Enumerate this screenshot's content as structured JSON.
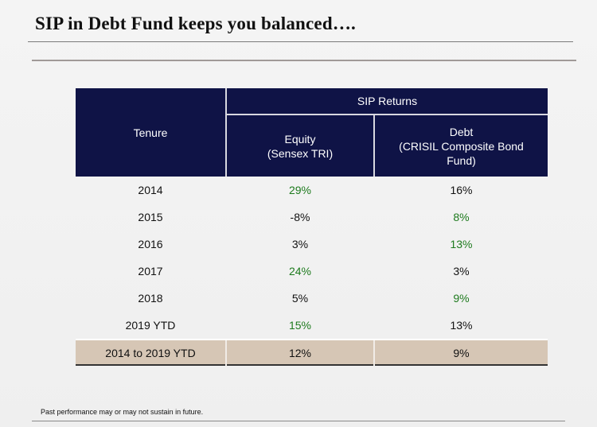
{
  "title": "SIP in Debt Fund keeps you balanced….",
  "table": {
    "header": {
      "tenure": "Tenure",
      "sip_returns": "SIP Returns",
      "equity_line1": "Equity",
      "equity_line2": "(Sensex TRI)",
      "debt_line1": "Debt",
      "debt_line2": "(CRISIL Composite Bond",
      "debt_line3": "Fund)"
    },
    "rows": [
      {
        "tenure": "2014",
        "equity": "29%",
        "debt": "16%"
      },
      {
        "tenure": "2015",
        "equity": "-8%",
        "debt": "8%"
      },
      {
        "tenure": "2016",
        "equity": "3%",
        "debt": "13%"
      },
      {
        "tenure": "2017",
        "equity": "24%",
        "debt": "3%"
      },
      {
        "tenure": "2018",
        "equity": "5%",
        "debt": "9%"
      },
      {
        "tenure": "2019 YTD",
        "equity": "15%",
        "debt": "13%"
      }
    ],
    "total": {
      "tenure": "2014 to 2019 YTD",
      "equity": "12%",
      "debt": "9%"
    }
  },
  "footnote": "Past performance may or may not sustain in future.",
  "colors": {
    "header_bg": "#0f1346",
    "highlight_green": "#1d7a1d",
    "total_row_bg": "#d6c6b5"
  }
}
